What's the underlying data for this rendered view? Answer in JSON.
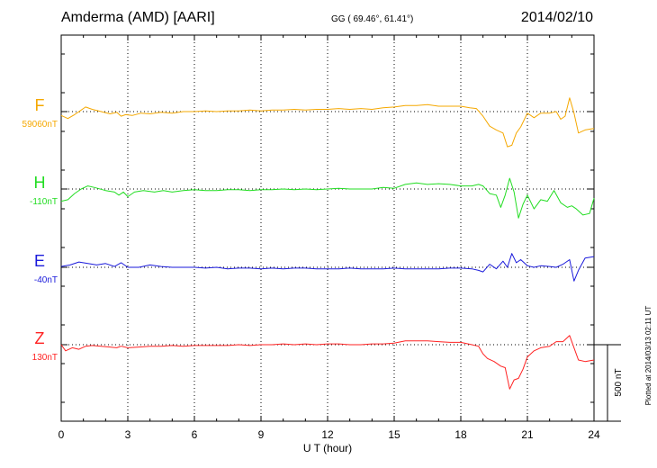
{
  "header": {
    "title": "Amderma (AMD)  [AARI]",
    "coords": "GG ( 69.46°,  61.41°)",
    "date": "2014/02/10"
  },
  "side_note": "Plotted at 2014/03/13 02:11  UT",
  "chart_data": {
    "type": "line",
    "xlabel": "U T (hour)",
    "xlim": [
      0,
      24
    ],
    "xticks": [
      0,
      3,
      6,
      9,
      12,
      15,
      18,
      21,
      24
    ],
    "grid": true,
    "scale_bar": {
      "label": "500 nT",
      "value_nT": 500
    },
    "series": [
      {
        "name": "F",
        "baseline_label": "59060nT",
        "color": "#f5a800",
        "points": [
          [
            0,
            -25
          ],
          [
            0.3,
            -45
          ],
          [
            0.6,
            -20
          ],
          [
            0.9,
            10
          ],
          [
            1.1,
            30
          ],
          [
            1.4,
            15
          ],
          [
            1.8,
            0
          ],
          [
            2.2,
            -15
          ],
          [
            2.5,
            -5
          ],
          [
            2.7,
            -30
          ],
          [
            2.9,
            -20
          ],
          [
            3.2,
            -25
          ],
          [
            3.6,
            -10
          ],
          [
            4,
            -15
          ],
          [
            4.5,
            -5
          ],
          [
            5,
            -10
          ],
          [
            5.5,
            0
          ],
          [
            6,
            0
          ],
          [
            6.5,
            5
          ],
          [
            7,
            0
          ],
          [
            7.5,
            5
          ],
          [
            8,
            5
          ],
          [
            8.5,
            10
          ],
          [
            9,
            5
          ],
          [
            9.5,
            10
          ],
          [
            10,
            10
          ],
          [
            10.5,
            15
          ],
          [
            11,
            10
          ],
          [
            11.5,
            15
          ],
          [
            12,
            15
          ],
          [
            12.5,
            20
          ],
          [
            13,
            15
          ],
          [
            13.5,
            20
          ],
          [
            14,
            15
          ],
          [
            14.5,
            25
          ],
          [
            15,
            30
          ],
          [
            15.5,
            40
          ],
          [
            16,
            40
          ],
          [
            16.5,
            45
          ],
          [
            17,
            35
          ],
          [
            17.5,
            35
          ],
          [
            18,
            35
          ],
          [
            18.4,
            25
          ],
          [
            18.7,
            20
          ],
          [
            19,
            -30
          ],
          [
            19.3,
            -95
          ],
          [
            19.6,
            -120
          ],
          [
            19.9,
            -140
          ],
          [
            20.1,
            -230
          ],
          [
            20.3,
            -220
          ],
          [
            20.5,
            -140
          ],
          [
            20.7,
            -100
          ],
          [
            21,
            -10
          ],
          [
            21.3,
            -40
          ],
          [
            21.6,
            -10
          ],
          [
            22,
            -10
          ],
          [
            22.3,
            0
          ],
          [
            22.5,
            -50
          ],
          [
            22.7,
            -30
          ],
          [
            22.9,
            90
          ],
          [
            23.1,
            -10
          ],
          [
            23.3,
            -140
          ],
          [
            23.6,
            -120
          ],
          [
            24,
            -110
          ]
        ]
      },
      {
        "name": "H",
        "baseline_label": "-110nT",
        "color": "#22dd22",
        "points": [
          [
            0,
            -80
          ],
          [
            0.3,
            -70
          ],
          [
            0.6,
            -30
          ],
          [
            0.9,
            0
          ],
          [
            1.2,
            20
          ],
          [
            1.5,
            10
          ],
          [
            2,
            -10
          ],
          [
            2.4,
            -20
          ],
          [
            2.6,
            -40
          ],
          [
            2.8,
            -20
          ],
          [
            3,
            -50
          ],
          [
            3.3,
            -20
          ],
          [
            3.7,
            -10
          ],
          [
            4.2,
            -20
          ],
          [
            4.6,
            -10
          ],
          [
            5,
            -20
          ],
          [
            5.5,
            -10
          ],
          [
            6,
            -5
          ],
          [
            6.5,
            -10
          ],
          [
            7,
            -10
          ],
          [
            7.5,
            -5
          ],
          [
            8,
            -5
          ],
          [
            8.5,
            -10
          ],
          [
            9,
            -5
          ],
          [
            9.5,
            -5
          ],
          [
            10,
            0
          ],
          [
            10.5,
            -5
          ],
          [
            11,
            0
          ],
          [
            11.5,
            -5
          ],
          [
            12,
            0
          ],
          [
            12.5,
            5
          ],
          [
            13,
            0
          ],
          [
            13.5,
            0
          ],
          [
            14,
            0
          ],
          [
            14.5,
            10
          ],
          [
            15,
            5
          ],
          [
            15.5,
            30
          ],
          [
            16,
            40
          ],
          [
            16.5,
            30
          ],
          [
            17,
            35
          ],
          [
            17.5,
            30
          ],
          [
            18,
            20
          ],
          [
            18.5,
            20
          ],
          [
            18.8,
            30
          ],
          [
            19,
            20
          ],
          [
            19.3,
            -30
          ],
          [
            19.6,
            -40
          ],
          [
            19.8,
            -120
          ],
          [
            20,
            -40
          ],
          [
            20.2,
            70
          ],
          [
            20.4,
            -20
          ],
          [
            20.6,
            -190
          ],
          [
            20.8,
            -100
          ],
          [
            21,
            -40
          ],
          [
            21.3,
            -130
          ],
          [
            21.6,
            -70
          ],
          [
            21.9,
            -80
          ],
          [
            22.2,
            -10
          ],
          [
            22.5,
            -90
          ],
          [
            22.8,
            -120
          ],
          [
            23,
            -110
          ],
          [
            23.2,
            -130
          ],
          [
            23.5,
            -170
          ],
          [
            23.8,
            -160
          ],
          [
            24,
            -60
          ]
        ]
      },
      {
        "name": "E",
        "baseline_label": "-40nT",
        "color": "#1a1adb",
        "points": [
          [
            0,
            5
          ],
          [
            0.4,
            15
          ],
          [
            0.8,
            35
          ],
          [
            1.2,
            25
          ],
          [
            1.6,
            15
          ],
          [
            2,
            25
          ],
          [
            2.4,
            5
          ],
          [
            2.7,
            30
          ],
          [
            3,
            0
          ],
          [
            3.5,
            0
          ],
          [
            4,
            15
          ],
          [
            4.5,
            5
          ],
          [
            5,
            0
          ],
          [
            5.5,
            0
          ],
          [
            6,
            0
          ],
          [
            6.5,
            -5
          ],
          [
            7,
            0
          ],
          [
            7.5,
            -10
          ],
          [
            8,
            -5
          ],
          [
            8.5,
            -5
          ],
          [
            9,
            -10
          ],
          [
            9.5,
            -5
          ],
          [
            10,
            -10
          ],
          [
            10.5,
            -5
          ],
          [
            11,
            -5
          ],
          [
            11.5,
            -10
          ],
          [
            12,
            -10
          ],
          [
            12.5,
            -10
          ],
          [
            13,
            -5
          ],
          [
            13.5,
            -10
          ],
          [
            14,
            -10
          ],
          [
            14.5,
            -10
          ],
          [
            15,
            -5
          ],
          [
            15.5,
            -10
          ],
          [
            16,
            -10
          ],
          [
            16.5,
            -10
          ],
          [
            17,
            -10
          ],
          [
            17.5,
            -5
          ],
          [
            18,
            -5
          ],
          [
            18.5,
            -10
          ],
          [
            18.8,
            -20
          ],
          [
            19,
            -30
          ],
          [
            19.3,
            20
          ],
          [
            19.6,
            -10
          ],
          [
            19.9,
            40
          ],
          [
            20.1,
            0
          ],
          [
            20.3,
            90
          ],
          [
            20.5,
            30
          ],
          [
            20.7,
            50
          ],
          [
            21,
            10
          ],
          [
            21.3,
            0
          ],
          [
            21.6,
            10
          ],
          [
            22,
            5
          ],
          [
            22.3,
            0
          ],
          [
            22.6,
            20
          ],
          [
            22.9,
            50
          ],
          [
            23.1,
            -90
          ],
          [
            23.3,
            -20
          ],
          [
            23.6,
            60
          ],
          [
            24,
            70
          ]
        ]
      },
      {
        "name": "Z",
        "baseline_label": "130nT",
        "color": "#ff2222",
        "points": [
          [
            0,
            0
          ],
          [
            0.2,
            -40
          ],
          [
            0.5,
            -20
          ],
          [
            0.8,
            -30
          ],
          [
            1.1,
            -10
          ],
          [
            1.4,
            -5
          ],
          [
            1.8,
            -10
          ],
          [
            2.2,
            -15
          ],
          [
            2.5,
            -20
          ],
          [
            2.7,
            -10
          ],
          [
            3,
            -20
          ],
          [
            3.5,
            -15
          ],
          [
            4,
            -10
          ],
          [
            4.5,
            -10
          ],
          [
            5,
            -5
          ],
          [
            5.5,
            -10
          ],
          [
            6,
            -5
          ],
          [
            6.5,
            -5
          ],
          [
            7,
            -5
          ],
          [
            7.5,
            -5
          ],
          [
            8,
            0
          ],
          [
            8.5,
            -5
          ],
          [
            9,
            0
          ],
          [
            9.5,
            0
          ],
          [
            10,
            5
          ],
          [
            10.5,
            0
          ],
          [
            11,
            5
          ],
          [
            11.5,
            0
          ],
          [
            12,
            5
          ],
          [
            12.5,
            5
          ],
          [
            13,
            0
          ],
          [
            13.5,
            0
          ],
          [
            14,
            5
          ],
          [
            14.5,
            5
          ],
          [
            15,
            10
          ],
          [
            15.5,
            25
          ],
          [
            16,
            25
          ],
          [
            16.5,
            25
          ],
          [
            17,
            20
          ],
          [
            17.5,
            15
          ],
          [
            18,
            15
          ],
          [
            18.5,
            0
          ],
          [
            18.8,
            -10
          ],
          [
            19,
            -60
          ],
          [
            19.2,
            -90
          ],
          [
            19.5,
            -110
          ],
          [
            19.8,
            -140
          ],
          [
            20,
            -150
          ],
          [
            20.2,
            -290
          ],
          [
            20.4,
            -230
          ],
          [
            20.6,
            -220
          ],
          [
            20.8,
            -160
          ],
          [
            21,
            -80
          ],
          [
            21.3,
            -40
          ],
          [
            21.6,
            -20
          ],
          [
            22,
            -10
          ],
          [
            22.3,
            20
          ],
          [
            22.6,
            20
          ],
          [
            22.9,
            60
          ],
          [
            23.1,
            -20
          ],
          [
            23.3,
            -100
          ],
          [
            23.6,
            -110
          ],
          [
            24,
            -100
          ]
        ]
      }
    ]
  }
}
